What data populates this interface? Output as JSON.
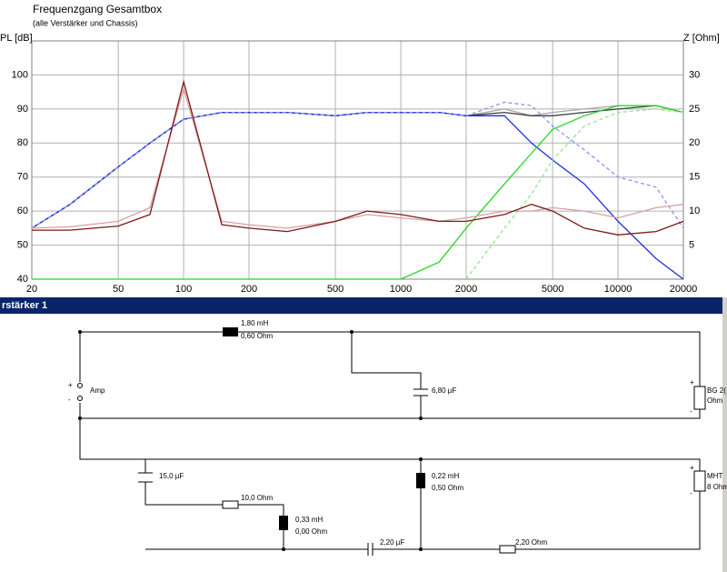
{
  "chart_data": {
    "type": "line",
    "title": "Frequenzgang Gesamtbox",
    "subtitle": "(alle Verstärker und Chassis)",
    "y_label": "PL [dB]",
    "y2_label": "Z [Ohm]",
    "log_x": true,
    "grid": true,
    "x": [
      20,
      30,
      50,
      70,
      100,
      150,
      200,
      300,
      500,
      700,
      1000,
      1500,
      2000,
      3000,
      4000,
      5000,
      7000,
      10000,
      15000,
      20000
    ],
    "xlim": [
      20,
      20000
    ],
    "xticks": [
      20,
      50,
      100,
      200,
      500,
      1000,
      2000,
      5000,
      10000,
      20000
    ],
    "ylim": [
      40,
      110
    ],
    "yticks": [
      40,
      50,
      60,
      70,
      80,
      90,
      100
    ],
    "y2lim": [
      0,
      35
    ],
    "y2ticks": [
      5,
      10,
      15,
      20,
      25,
      30
    ],
    "series": [
      {
        "color": "#a8a8a8",
        "values": [
          55,
          62,
          73,
          80,
          87,
          89,
          89,
          89,
          88,
          89,
          89,
          89,
          88,
          90,
          88,
          89,
          90,
          91,
          91,
          89
        ]
      },
      {
        "color": "#404040",
        "values": [
          55,
          62,
          73,
          80,
          87,
          89,
          89,
          89,
          88,
          89,
          89,
          89,
          88,
          89,
          88,
          88,
          89,
          90,
          91,
          89
        ]
      },
      {
        "color": "#1a2ee0",
        "values": [
          55,
          62,
          73,
          80,
          87,
          89,
          89,
          89,
          88,
          89,
          89,
          89,
          88,
          88,
          80,
          75,
          68,
          57,
          46,
          40
        ]
      },
      {
        "color": "#8a94f0",
        "dashed": true,
        "values": [
          55,
          62,
          73,
          80,
          87,
          89,
          89,
          89,
          88,
          89,
          89,
          89,
          88,
          92,
          91,
          85,
          78,
          70,
          67,
          55
        ]
      },
      {
        "color": "#22d822",
        "values": [
          40,
          40,
          40,
          40,
          40,
          40,
          40,
          40,
          40,
          40,
          40,
          45,
          55,
          68,
          77,
          84,
          88,
          91,
          91,
          89
        ]
      },
      {
        "color": "#90e890",
        "dashed": true,
        "values": [
          null,
          null,
          null,
          null,
          null,
          null,
          null,
          null,
          null,
          null,
          null,
          null,
          40,
          55,
          65,
          75,
          85,
          89,
          90,
          89
        ]
      },
      {
        "color": "#d8a0a0",
        "axis": "y2",
        "values": [
          7.5,
          7.7,
          8.5,
          10.5,
          28,
          8.5,
          8,
          7.5,
          8.5,
          9.5,
          9,
          8.5,
          9,
          10,
          10,
          10.5,
          10,
          9,
          10.5,
          11
        ]
      },
      {
        "color": "#801818",
        "axis": "y2",
        "values": [
          7.2,
          7.2,
          7.8,
          9.5,
          29,
          8,
          7.5,
          7,
          8.5,
          10,
          9.5,
          8.5,
          8.5,
          9.5,
          11,
          10,
          7.5,
          6.5,
          7,
          8.5
        ]
      }
    ]
  },
  "window": {
    "title": "rstärker 1"
  },
  "schematic": {
    "labels": [
      "1,80 mH",
      "0,60 Ohm",
      "6,80 µF",
      "Amp",
      "+",
      "-",
      "BG 2(",
      "Ohm",
      "15,0 µF",
      "10,0 Ohm",
      "0,33 mH",
      "0,00 Ohm",
      "0,22 mH",
      "0,50 Ohm",
      "2,20 µF",
      "2,20 Ohm",
      "MHT",
      "8 Ohm",
      "+",
      "-",
      "+",
      "-"
    ]
  }
}
